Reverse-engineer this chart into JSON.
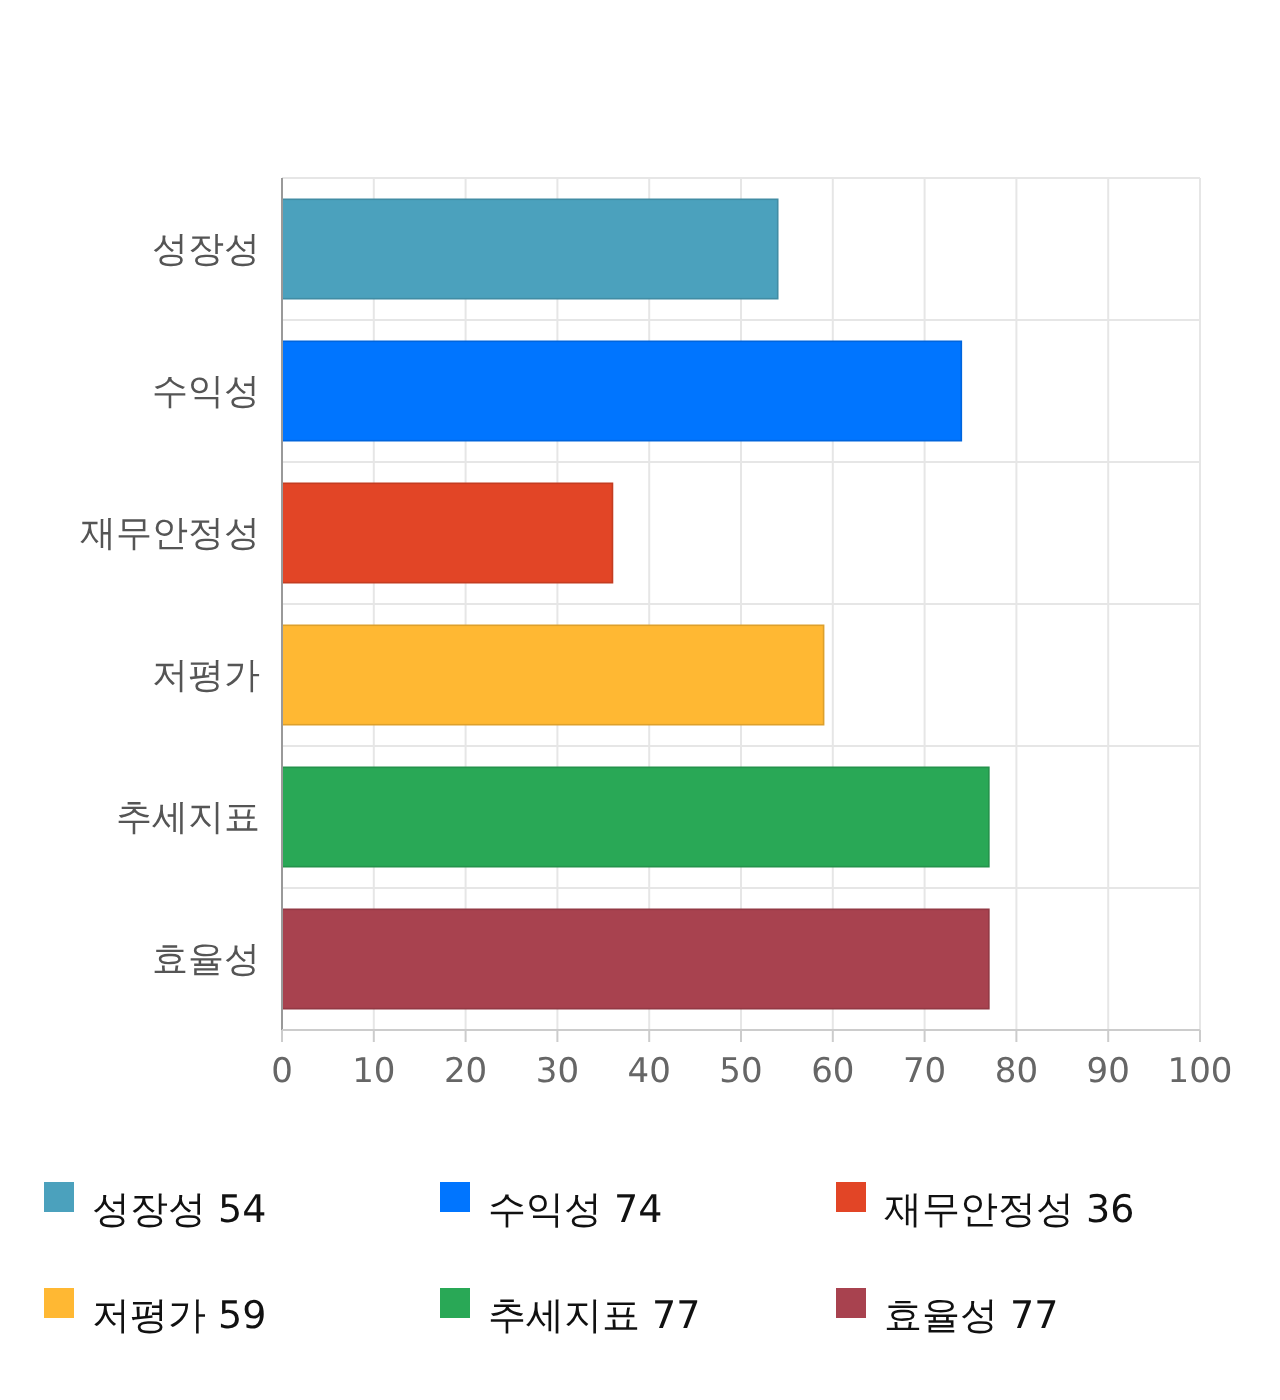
{
  "chart_data": {
    "type": "bar",
    "orientation": "horizontal",
    "stacked": true,
    "categories": [
      "성장성",
      "수익성",
      "재무안정성",
      "저평가",
      "추세지표",
      "효율성"
    ],
    "series": [
      {
        "name": "성장성 54",
        "color": "#4ba1bd",
        "values": [
          54,
          null,
          null,
          null,
          null,
          null
        ]
      },
      {
        "name": "수익성 74",
        "color": "#0075ff",
        "values": [
          null,
          74,
          null,
          null,
          null,
          null
        ]
      },
      {
        "name": "재무안정성 36",
        "color": "#e24526",
        "values": [
          null,
          null,
          36,
          null,
          null,
          null
        ]
      },
      {
        "name": "저평가 59",
        "color": "#ffb833",
        "values": [
          null,
          null,
          null,
          59,
          null,
          null
        ]
      },
      {
        "name": "추세지표 77",
        "color": "#29a856",
        "values": [
          null,
          null,
          null,
          null,
          77,
          null
        ]
      },
      {
        "name": "효율성 77",
        "color": "#a8424f",
        "values": [
          null,
          null,
          null,
          null,
          null,
          77
        ]
      }
    ],
    "xlim": [
      0,
      100
    ],
    "xticks": [
      0,
      10,
      20,
      30,
      40,
      50,
      60,
      70,
      80,
      90,
      100
    ],
    "grid": true,
    "legend": "bottom"
  }
}
